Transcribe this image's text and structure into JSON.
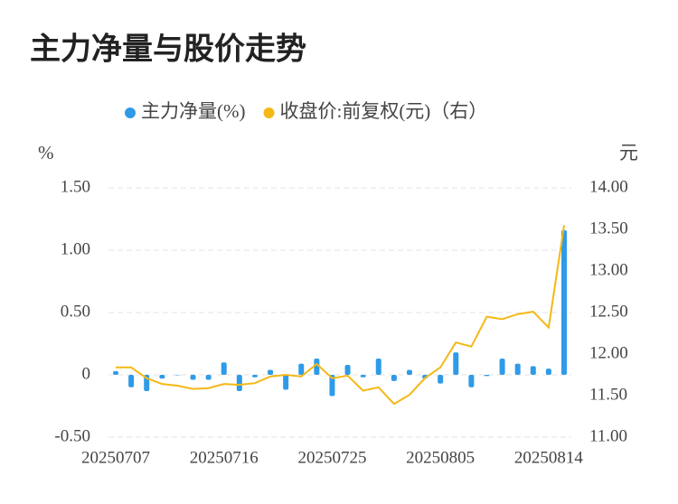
{
  "chart_data": {
    "type": "bar_line",
    "title": "主力净量与股价走势",
    "y_unit": "%",
    "y2_unit": "元",
    "categories": [
      "20250707",
      null,
      null,
      null,
      null,
      null,
      null,
      "20250716",
      null,
      null,
      null,
      null,
      null,
      null,
      "20250725",
      null,
      null,
      null,
      null,
      null,
      null,
      "20250805",
      null,
      null,
      null,
      null,
      null,
      null,
      "20250814",
      null
    ],
    "series": [
      {
        "name": "主力净量(%)",
        "type": "bar",
        "color": "#2f9be8",
        "axis": "y",
        "values": [
          0.03,
          -0.1,
          -0.13,
          -0.03,
          0.0,
          -0.04,
          -0.04,
          0.1,
          -0.13,
          -0.02,
          0.04,
          -0.12,
          0.09,
          0.13,
          -0.17,
          0.08,
          -0.02,
          0.13,
          -0.05,
          0.04,
          -0.03,
          -0.07,
          0.18,
          -0.1,
          -0.01,
          0.13,
          0.09,
          0.07,
          0.05,
          1.16
        ]
      },
      {
        "name": "收盘价:前复权(元)（右）",
        "type": "line",
        "color": "#f5b815",
        "axis": "y2",
        "values": [
          11.84,
          11.84,
          11.71,
          11.64,
          11.62,
          11.58,
          11.59,
          11.64,
          11.63,
          11.65,
          11.73,
          11.75,
          11.73,
          11.88,
          11.71,
          11.74,
          11.56,
          11.6,
          11.4,
          11.51,
          11.71,
          11.84,
          12.14,
          12.09,
          12.45,
          12.42,
          12.48,
          12.51,
          12.32,
          13.55
        ]
      }
    ],
    "ylim": [
      -0.5,
      1.5
    ],
    "yticks": [
      {
        "value": 1.5,
        "label": "1.50"
      },
      {
        "value": 1.0,
        "label": "1.00"
      },
      {
        "value": 0.5,
        "label": "0.50"
      },
      0,
      {
        "value": -0.5,
        "label": "-0.50"
      }
    ],
    "y2lim": [
      11.0,
      14.0
    ],
    "y2ticks": [
      {
        "value": 14.0,
        "label": "14.00"
      },
      {
        "value": 13.5,
        "label": "13.50"
      },
      {
        "value": 13.0,
        "label": "13.00"
      },
      {
        "value": 12.5,
        "label": "12.50"
      },
      {
        "value": 12.0,
        "label": "12.00"
      },
      {
        "value": 11.5,
        "label": "11.50"
      },
      {
        "value": 11.0,
        "label": "11.00"
      }
    ],
    "grid": true
  }
}
